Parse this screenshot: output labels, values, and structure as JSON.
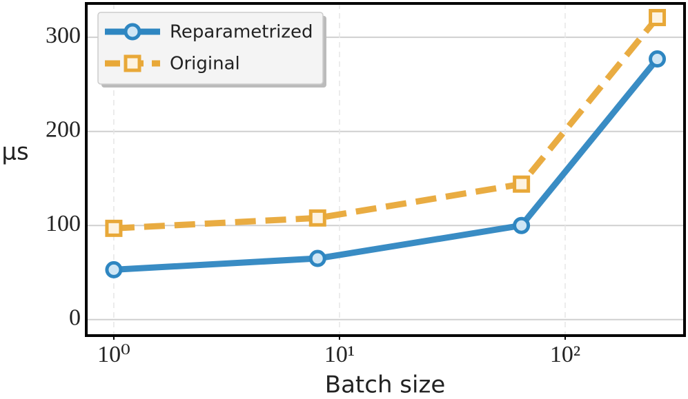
{
  "chart_data": {
    "type": "line",
    "x": [
      1,
      8,
      64,
      256
    ],
    "xlabel": "Batch size",
    "ylabel": "μs",
    "xscale": "log",
    "series": [
      {
        "name": "Reparametrized",
        "color": "#2e86c1",
        "marker": "circle",
        "linestyle": "solid",
        "values": [
          53,
          65,
          100,
          277
        ]
      },
      {
        "name": "Original",
        "color": "#e8a838",
        "marker": "square",
        "linestyle": "dashed",
        "values": [
          97,
          108,
          144,
          321
        ]
      }
    ],
    "xlim": [
      0.755,
      338
    ],
    "ylim": [
      -17,
      336
    ],
    "xticks": [
      {
        "value": 1,
        "label": "10⁰"
      },
      {
        "value": 10,
        "label": "10¹"
      },
      {
        "value": 100,
        "label": "10²"
      }
    ],
    "yticks": [
      0,
      100,
      200,
      300
    ],
    "grid": true,
    "legend": "upper left"
  }
}
